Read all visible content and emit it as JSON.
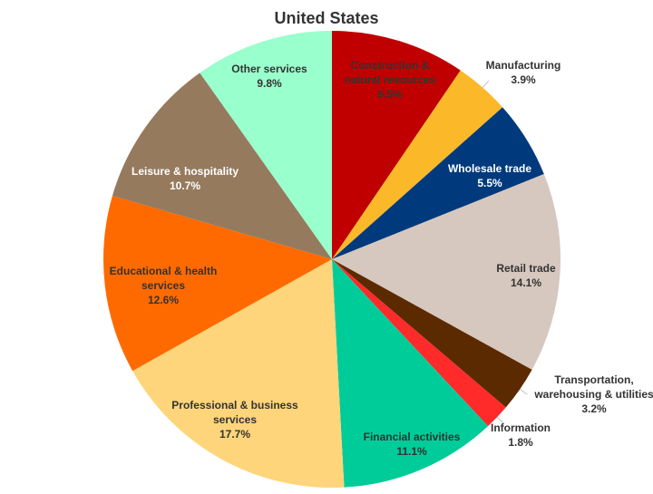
{
  "chart_data": {
    "type": "pie",
    "title": "United States",
    "slices": [
      {
        "label": "Construction & natural resources",
        "lines": [
          "Construction &",
          "natural resources"
        ],
        "value_text": "9.5%",
        "value": 9.5,
        "color": "#c00000",
        "label_position": "inside"
      },
      {
        "label": "Manufacturing",
        "lines": [
          "Manufacturing"
        ],
        "value_text": "3.9%",
        "value": 3.9,
        "color": "#fbb829",
        "label_position": "outside"
      },
      {
        "label": "Wholesale trade",
        "lines": [
          "Wholesale trade"
        ],
        "value_text": "5.5%",
        "value": 5.5,
        "color": "#003a7d",
        "label_position": "inside",
        "label_color": "#ffffff"
      },
      {
        "label": "Retail trade",
        "lines": [
          "Retail trade"
        ],
        "value_text": "14.1%",
        "value": 14.1,
        "color": "#d6c8bf",
        "label_position": "inside"
      },
      {
        "label": "Transportation, warehousing & utilities",
        "lines": [
          "Transportation,",
          "warehousing & utilities"
        ],
        "value_text": "3.2%",
        "value": 3.2,
        "color": "#5c2a00",
        "label_position": "outside"
      },
      {
        "label": "Information",
        "lines": [
          "Information"
        ],
        "value_text": "1.8%",
        "value": 1.8,
        "color": "#ff2a2a",
        "label_position": "outside"
      },
      {
        "label": "Financial activities",
        "lines": [
          "Financial activities"
        ],
        "value_text": "11.1%",
        "value": 11.1,
        "color": "#00cc99",
        "label_position": "inside"
      },
      {
        "label": "Professional & business services",
        "lines": [
          "Professional & business",
          "services"
        ],
        "value_text": "17.7%",
        "value": 17.7,
        "color": "#fed57a",
        "label_position": "inside"
      },
      {
        "label": "Educational & health services",
        "lines": [
          "Educational & health",
          "services"
        ],
        "value_text": "12.6%",
        "value": 12.6,
        "color": "#ff6a00",
        "label_position": "inside"
      },
      {
        "label": "Leisure & hospitality",
        "lines": [
          "Leisure & hospitality"
        ],
        "value_text": "10.7%",
        "value": 10.7,
        "color": "#967a5e",
        "label_position": "inside",
        "label_color": "#ffffff"
      },
      {
        "label": "Other services",
        "lines": [
          "Other services"
        ],
        "value_text": "9.8%",
        "value": 9.8,
        "color": "#99ffcc",
        "label_position": "inside"
      }
    ],
    "start_angle_deg": 0,
    "direction": "clockwise",
    "legend": "none"
  }
}
